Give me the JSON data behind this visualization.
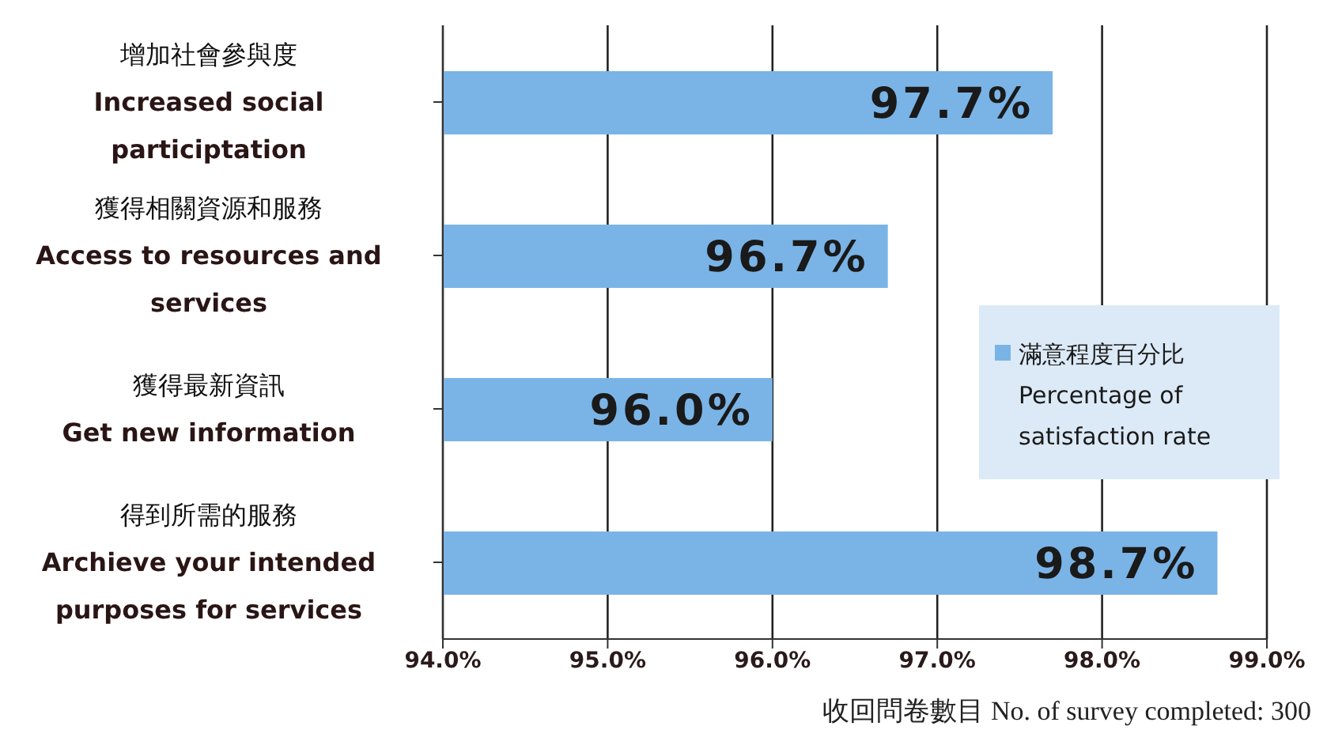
{
  "chart_data": {
    "type": "bar",
    "orientation": "horizontal",
    "categories": [
      "增加社會參與度\nIncreased social\nparticiptation",
      "獲得相關資源和服務\nAccess to resources and\nservices",
      "獲得最新資訊\nGet new information",
      "得到所需的服務\nArchieve your intended\npurposes for services"
    ],
    "series": [
      {
        "name": "滿意程度百分比\nPercentage of\nsatisfaction rate",
        "color": "#7ab4e6",
        "values": [
          97.7,
          96.7,
          96.0,
          98.7
        ],
        "value_labels": [
          "97.7%",
          "96.7%",
          "96.0%",
          "98.7%"
        ]
      }
    ],
    "xlim": [
      94,
      99
    ],
    "xticks": [
      {
        "value": 94,
        "label": "94.0%"
      },
      {
        "value": 95,
        "label": "95.0%"
      },
      {
        "value": 96,
        "label": "96.0%"
      },
      {
        "value": 97,
        "label": "97.0%"
      },
      {
        "value": 98,
        "label": "98.0%"
      },
      {
        "value": 99,
        "label": "99.0%"
      }
    ],
    "grid": "x",
    "legend": "right",
    "annotations": [
      "收回問卷數目 No. of survey completed: 300"
    ]
  }
}
